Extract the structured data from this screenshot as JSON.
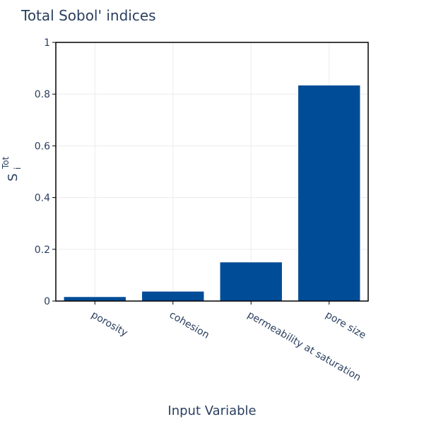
{
  "chart_data": {
    "type": "bar",
    "title": "Total Sobol' indices",
    "xlabel": "Input Variable",
    "ylabel": {
      "base": "S",
      "subscript": "i",
      "superscript": "Tot"
    },
    "categories": [
      "porosity",
      "cohesion",
      "permeability at saturation",
      "pore size"
    ],
    "values": [
      0.017,
      0.038,
      0.151,
      0.835
    ],
    "ylim": [
      0,
      1
    ],
    "yticks": [
      0,
      0.2,
      0.4,
      0.6,
      0.8,
      1
    ],
    "ytick_labels": [
      "0",
      "0.2",
      "0.4",
      "0.6",
      "0.8",
      "1"
    ],
    "bar_color": "#004c97",
    "grid": true,
    "legend": "none"
  }
}
